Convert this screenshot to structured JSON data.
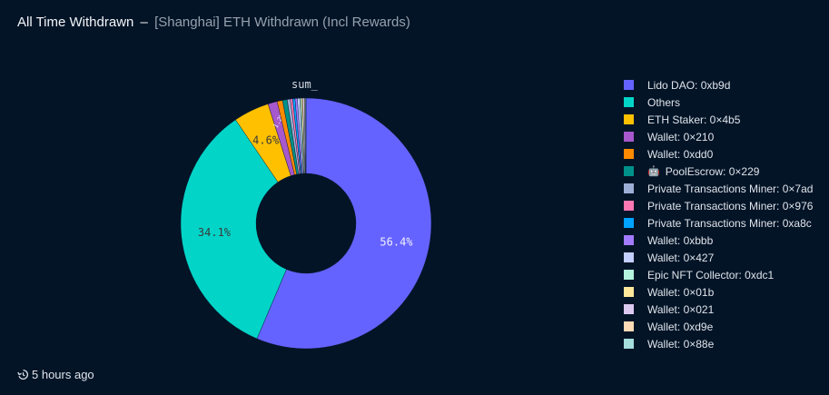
{
  "header": {
    "title": "All Time Withdrawn",
    "separator": "–",
    "subtitle": "[Shanghai] ETH Withdrawn (Incl Rewards)"
  },
  "chart_data": {
    "type": "pie",
    "variant": "donut",
    "title": "All Time Withdrawn",
    "subtitle": "[Shanghai] ETH Withdrawn (Incl Rewards)",
    "series_name": "sum_",
    "legend_position": "right",
    "categories": [
      "Lido DAO: 0xb9d",
      "Others",
      "ETH Staker: 0×4b5",
      "Wallet: 0×210",
      "Wallet: 0xdd0",
      "PoolEscrow: 0×229",
      "Private Transactions Miner: 0×7ad",
      "Private Transactions Miner: 0×976",
      "Private Transactions Miner: 0xa8c",
      "Wallet: 0xbbb",
      "Wallet: 0×427",
      "Epic NFT Collector: 0xdc1",
      "Wallet: 0×01b",
      "Wallet: 0×021",
      "Wallet: 0xd9e",
      "Wallet: 0×88e"
    ],
    "values": [
      56.4,
      34.1,
      4.6,
      1.2,
      0.7,
      0.6,
      0.4,
      0.3,
      0.3,
      0.3,
      0.3,
      0.2,
      0.2,
      0.2,
      0.1,
      0.1
    ],
    "value_unit": "%",
    "visible_labels": [
      "56.4%",
      "34.1%",
      "4.6%",
      "1.2%"
    ],
    "colors": [
      "#6563ff",
      "#03d4c8",
      "#ffc000",
      "#a658cc",
      "#ff8a00",
      "#00918a",
      "#9daed6",
      "#ff78b4",
      "#00a3ff",
      "#a37bff",
      "#c2cfff",
      "#b4f4de",
      "#ffe79a",
      "#dcc9f0",
      "#ffdab4",
      "#a5dcdc"
    ]
  },
  "legend": {
    "items": [
      {
        "label": "Lido DAO: 0xb9d",
        "color": "#6563ff"
      },
      {
        "label": "Others",
        "color": "#03d4c8"
      },
      {
        "label": "ETH Staker: 0×4b5",
        "color": "#ffc000"
      },
      {
        "label": "Wallet: 0×210",
        "color": "#a658cc"
      },
      {
        "label": "Wallet: 0xdd0",
        "color": "#ff8a00"
      },
      {
        "label": "PoolEscrow: 0×229",
        "color": "#00918a",
        "icon": "🤖"
      },
      {
        "label": "Private Transactions Miner: 0×7ad",
        "color": "#9daed6"
      },
      {
        "label": "Private Transactions Miner: 0×976",
        "color": "#ff78b4"
      },
      {
        "label": "Private Transactions Miner: 0xa8c",
        "color": "#00a3ff"
      },
      {
        "label": "Wallet: 0xbbb",
        "color": "#a37bff"
      },
      {
        "label": "Wallet: 0×427",
        "color": "#c2cfff"
      },
      {
        "label": "Epic NFT Collector: 0xdc1",
        "color": "#b4f4de"
      },
      {
        "label": "Wallet: 0×01b",
        "color": "#ffe79a"
      },
      {
        "label": "Wallet: 0×021",
        "color": "#dcc9f0"
      },
      {
        "label": "Wallet: 0xd9e",
        "color": "#ffdab4"
      },
      {
        "label": "Wallet: 0×88e",
        "color": "#a5dcdc"
      }
    ]
  },
  "footer": {
    "icon": "history-icon",
    "timestamp": "5 hours ago"
  }
}
